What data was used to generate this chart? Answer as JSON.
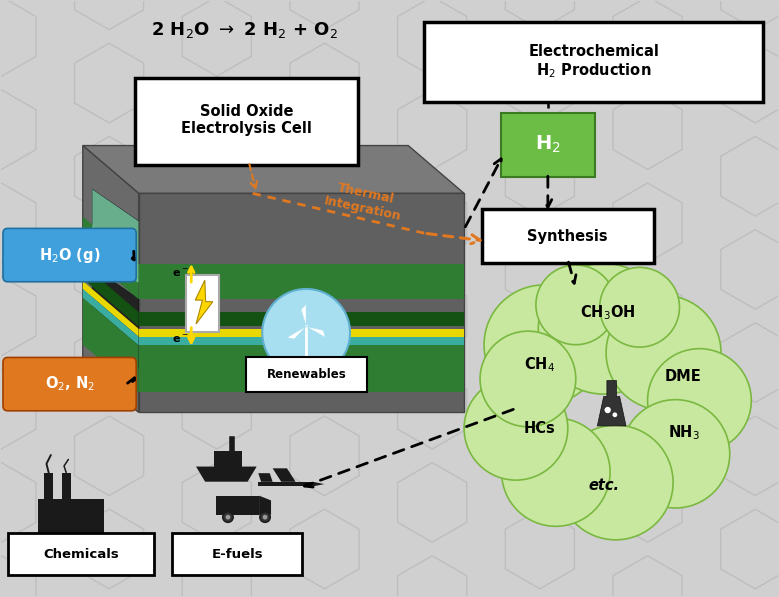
{
  "bg_color": "#d0d0d0",
  "h2o_color": "#3fa0dc",
  "o2_color": "#e07820",
  "h2_color": "#6cbd45",
  "cloud_color": "#c8e8a0",
  "cloud_edge": "#7ab840",
  "orange_arrow": "#e07820",
  "cell_layers": [
    [
      3.72,
      0.44,
      "#2e7d32"
    ],
    [
      3.38,
      0.18,
      "#145214"
    ],
    [
      3.25,
      0.1,
      "#e8d800"
    ],
    [
      3.14,
      0.11,
      "#3aada0"
    ],
    [
      2.55,
      0.59,
      "#2e7d32"
    ]
  ],
  "cloud_circles": [
    [
      6.8,
      3.15,
      0.75
    ],
    [
      7.55,
      3.35,
      0.82
    ],
    [
      8.3,
      3.05,
      0.72
    ],
    [
      8.75,
      2.45,
      0.65
    ],
    [
      8.45,
      1.78,
      0.68
    ],
    [
      7.7,
      1.42,
      0.72
    ],
    [
      6.95,
      1.55,
      0.68
    ],
    [
      6.45,
      2.1,
      0.65
    ],
    [
      6.6,
      2.72,
      0.6
    ],
    [
      7.2,
      3.65,
      0.5
    ],
    [
      8.0,
      3.62,
      0.5
    ]
  ]
}
